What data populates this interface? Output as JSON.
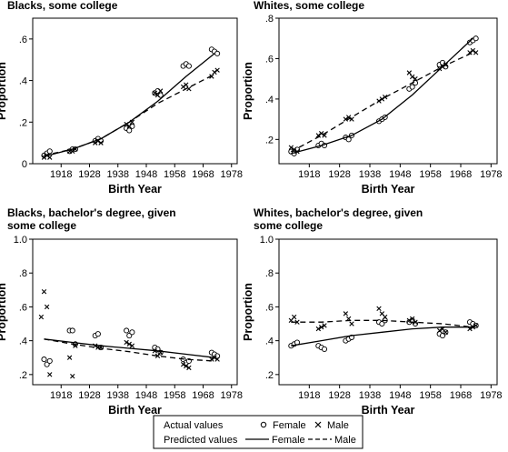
{
  "chart_data": [
    {
      "type": "line",
      "title": "Blacks, some college",
      "xlabel": "Birth Year",
      "ylabel": "Proportion",
      "xlim": [
        1908,
        1980
      ],
      "ylim": [
        0,
        0.7
      ],
      "xticks": [
        "1918",
        "1928",
        "1938",
        "1948",
        "1958",
        "1968",
        "1978"
      ],
      "yticks": [
        "0",
        ".2",
        ".4",
        ".6"
      ],
      "grid": false,
      "series": [
        {
          "name": "Female",
          "kind": "actual",
          "x": [
            1912,
            1913,
            1914,
            1921,
            1922,
            1923,
            1930,
            1931,
            1932,
            1941,
            1942,
            1943,
            1951,
            1952,
            1953,
            1961,
            1962,
            1963,
            1971,
            1972,
            1973
          ],
          "y": [
            0.04,
            0.05,
            0.06,
            0.06,
            0.07,
            0.07,
            0.11,
            0.12,
            0.11,
            0.17,
            0.16,
            0.18,
            0.34,
            0.35,
            0.33,
            0.47,
            0.48,
            0.47,
            0.55,
            0.54,
            0.53
          ]
        },
        {
          "name": "Male",
          "kind": "actual",
          "x": [
            1912,
            1913,
            1914,
            1921,
            1922,
            1923,
            1930,
            1931,
            1932,
            1941,
            1942,
            1943,
            1951,
            1952,
            1953,
            1961,
            1962,
            1963,
            1971,
            1972,
            1973
          ],
          "y": [
            0.03,
            0.04,
            0.03,
            0.06,
            0.06,
            0.07,
            0.1,
            0.11,
            0.1,
            0.19,
            0.18,
            0.2,
            0.34,
            0.33,
            0.35,
            0.37,
            0.38,
            0.36,
            0.42,
            0.44,
            0.45
          ]
        },
        {
          "name": "Female",
          "kind": "predicted",
          "x": [
            1912,
            1922,
            1932,
            1942,
            1952,
            1962,
            1972
          ],
          "y": [
            0.035,
            0.07,
            0.12,
            0.2,
            0.3,
            0.42,
            0.53
          ]
        },
        {
          "name": "Male",
          "kind": "predicted",
          "x": [
            1912,
            1922,
            1932,
            1942,
            1952,
            1962,
            1972
          ],
          "y": [
            0.04,
            0.07,
            0.12,
            0.2,
            0.29,
            0.36,
            0.43
          ]
        }
      ]
    },
    {
      "type": "line",
      "title": "Whites, some college",
      "xlabel": "Birth Year",
      "ylabel": "Proportion",
      "xlim": [
        1908,
        1980
      ],
      "ylim": [
        0.08,
        0.8
      ],
      "xticks": [
        "1918",
        "1928",
        "1938",
        "1948",
        "1958",
        "1968",
        "1978"
      ],
      "yticks": [
        ".2",
        ".4",
        ".6",
        ".8"
      ],
      "grid": false,
      "series": [
        {
          "name": "Female",
          "kind": "actual",
          "x": [
            1912,
            1913,
            1914,
            1921,
            1922,
            1923,
            1930,
            1931,
            1932,
            1941,
            1942,
            1943,
            1951,
            1952,
            1953,
            1961,
            1962,
            1963,
            1971,
            1972,
            1973
          ],
          "y": [
            0.14,
            0.13,
            0.15,
            0.17,
            0.18,
            0.17,
            0.21,
            0.2,
            0.22,
            0.29,
            0.3,
            0.31,
            0.45,
            0.46,
            0.48,
            0.57,
            0.58,
            0.56,
            0.68,
            0.69,
            0.7
          ]
        },
        {
          "name": "Male",
          "kind": "actual",
          "x": [
            1912,
            1913,
            1914,
            1921,
            1922,
            1923,
            1930,
            1931,
            1932,
            1941,
            1942,
            1943,
            1951,
            1952,
            1953,
            1961,
            1962,
            1963,
            1971,
            1972,
            1973
          ],
          "y": [
            0.16,
            0.15,
            0.14,
            0.22,
            0.23,
            0.22,
            0.3,
            0.31,
            0.3,
            0.39,
            0.4,
            0.41,
            0.53,
            0.51,
            0.5,
            0.55,
            0.56,
            0.57,
            0.63,
            0.64,
            0.63
          ]
        },
        {
          "name": "Female",
          "kind": "predicted",
          "x": [
            1912,
            1922,
            1932,
            1942,
            1952,
            1962,
            1972
          ],
          "y": [
            0.13,
            0.17,
            0.22,
            0.3,
            0.42,
            0.56,
            0.7
          ]
        },
        {
          "name": "Male",
          "kind": "predicted",
          "x": [
            1912,
            1922,
            1932,
            1942,
            1952,
            1962,
            1972
          ],
          "y": [
            0.14,
            0.22,
            0.31,
            0.4,
            0.48,
            0.56,
            0.63
          ]
        }
      ]
    },
    {
      "type": "line",
      "title": "Blacks, bachelor's degree, given",
      "subtitle": "some college",
      "xlabel": "Birth Year",
      "ylabel": "Proportion",
      "xlim": [
        1908,
        1980
      ],
      "ylim": [
        0.14,
        1.0
      ],
      "xticks": [
        "1918",
        "1928",
        "1938",
        "1948",
        "1958",
        "1968",
        "1978"
      ],
      "yticks": [
        ".2",
        ".4",
        ".6",
        ".8",
        "1.0"
      ],
      "grid": false,
      "series": [
        {
          "name": "Female",
          "kind": "actual",
          "x": [
            1912,
            1913,
            1914,
            1921,
            1922,
            1923,
            1930,
            1931,
            1932,
            1941,
            1942,
            1943,
            1951,
            1952,
            1953,
            1961,
            1962,
            1963,
            1971,
            1972,
            1973
          ],
          "y": [
            0.29,
            0.26,
            0.28,
            0.46,
            0.46,
            0.38,
            0.43,
            0.44,
            0.36,
            0.46,
            0.43,
            0.45,
            0.36,
            0.35,
            0.33,
            0.29,
            0.27,
            0.28,
            0.33,
            0.32,
            0.31
          ]
        },
        {
          "name": "Male",
          "kind": "actual",
          "x": [
            1911,
            1912,
            1913,
            1914,
            1921,
            1922,
            1923,
            1930,
            1931,
            1932,
            1941,
            1942,
            1943,
            1951,
            1952,
            1953,
            1961,
            1962,
            1963,
            1971,
            1972,
            1973
          ],
          "y": [
            0.54,
            0.69,
            0.6,
            0.2,
            0.3,
            0.19,
            0.37,
            0.37,
            0.36,
            0.36,
            0.39,
            0.38,
            0.37,
            0.34,
            0.31,
            0.33,
            0.26,
            0.25,
            0.24,
            0.29,
            0.3,
            0.29
          ]
        },
        {
          "name": "Female",
          "kind": "predicted",
          "x": [
            1912,
            1922,
            1932,
            1942,
            1952,
            1962,
            1972
          ],
          "y": [
            0.41,
            0.39,
            0.37,
            0.355,
            0.34,
            0.32,
            0.3
          ]
        },
        {
          "name": "Male",
          "kind": "predicted",
          "x": [
            1912,
            1922,
            1932,
            1942,
            1952,
            1962,
            1972
          ],
          "y": [
            0.41,
            0.38,
            0.355,
            0.335,
            0.31,
            0.29,
            0.28
          ]
        }
      ]
    },
    {
      "type": "line",
      "title": "Whites, bachelor's degree, given",
      "subtitle": "some college",
      "xlabel": "Birth Year",
      "ylabel": "Proportion",
      "xlim": [
        1908,
        1980
      ],
      "ylim": [
        0.14,
        1.0
      ],
      "xticks": [
        "1918",
        "1928",
        "1938",
        "1948",
        "1958",
        "1968",
        "1978"
      ],
      "yticks": [
        ".2",
        ".4",
        ".6",
        ".8",
        "1.0"
      ],
      "grid": false,
      "series": [
        {
          "name": "Female",
          "kind": "actual",
          "x": [
            1912,
            1913,
            1914,
            1921,
            1922,
            1923,
            1930,
            1931,
            1932,
            1941,
            1942,
            1943,
            1951,
            1952,
            1953,
            1961,
            1962,
            1963,
            1971,
            1972,
            1973
          ],
          "y": [
            0.37,
            0.38,
            0.39,
            0.37,
            0.36,
            0.35,
            0.4,
            0.41,
            0.42,
            0.51,
            0.5,
            0.52,
            0.51,
            0.52,
            0.5,
            0.44,
            0.43,
            0.45,
            0.51,
            0.5,
            0.49
          ]
        },
        {
          "name": "Male",
          "kind": "actual",
          "x": [
            1912,
            1913,
            1914,
            1921,
            1922,
            1923,
            1930,
            1931,
            1932,
            1941,
            1942,
            1943,
            1951,
            1952,
            1953,
            1961,
            1962,
            1963,
            1971,
            1972,
            1973
          ],
          "y": [
            0.52,
            0.54,
            0.51,
            0.47,
            0.48,
            0.49,
            0.56,
            0.53,
            0.5,
            0.59,
            0.56,
            0.54,
            0.52,
            0.53,
            0.51,
            0.46,
            0.47,
            0.45,
            0.47,
            0.48,
            0.49
          ]
        },
        {
          "name": "Female",
          "kind": "predicted",
          "x": [
            1912,
            1922,
            1932,
            1942,
            1952,
            1962,
            1972
          ],
          "y": [
            0.37,
            0.4,
            0.43,
            0.45,
            0.47,
            0.48,
            0.48
          ]
        },
        {
          "name": "Male",
          "kind": "predicted",
          "x": [
            1912,
            1922,
            1932,
            1942,
            1952,
            1962,
            1972
          ],
          "y": [
            0.51,
            0.51,
            0.52,
            0.52,
            0.51,
            0.5,
            0.48
          ]
        }
      ]
    }
  ],
  "legend": {
    "placement": "bottom-center",
    "row1_label": "Actual values",
    "row1_female": "Female",
    "row1_male": "Male",
    "row2_label": "Predicted values",
    "row2_female": "Female",
    "row2_male": "Male"
  }
}
